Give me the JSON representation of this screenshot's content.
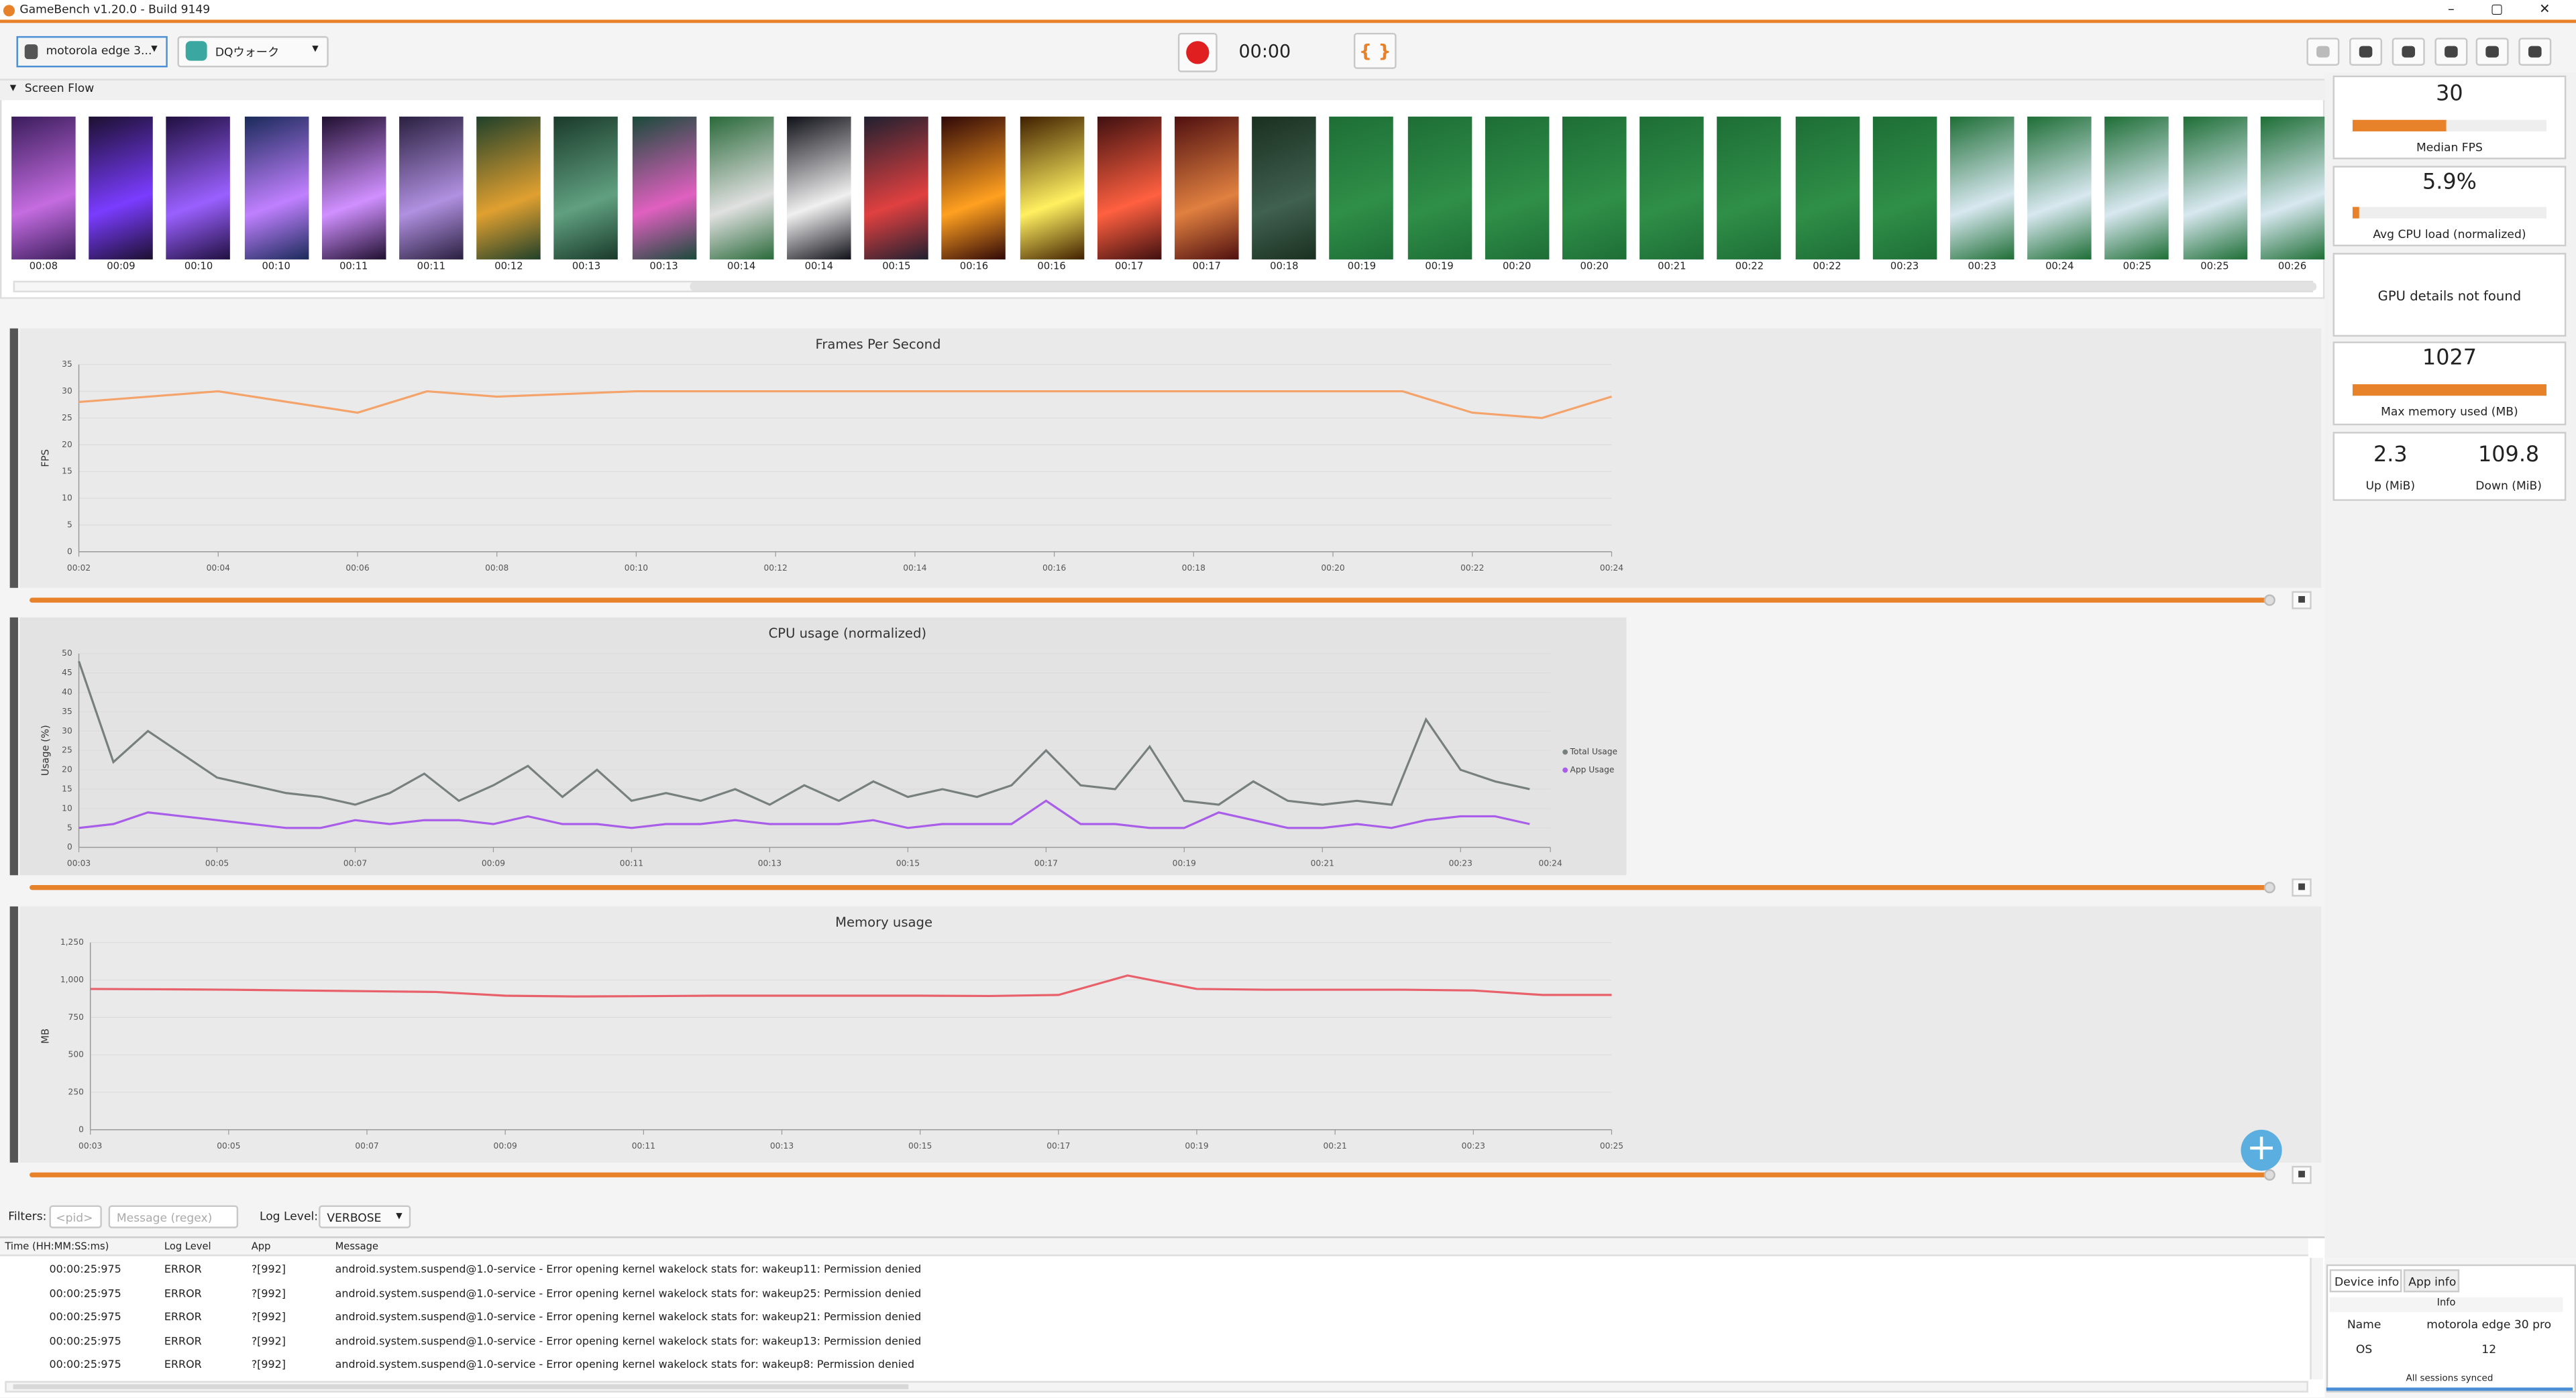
{
  "window_title": "GameBench v1.20.0 - Build 9149",
  "toolbar": {
    "device": "motorola edge 3...",
    "app": "DQウォーク",
    "timer": "00:00",
    "json_button": "{ }"
  },
  "screen_flow": {
    "title": "Screen Flow",
    "timestamps": [
      "00:08",
      "00:09",
      "00:10",
      "00:10",
      "00:11",
      "00:11",
      "00:12",
      "00:13",
      "00:13",
      "00:14",
      "00:14",
      "00:15",
      "00:16",
      "00:16",
      "00:17",
      "00:17",
      "00:18",
      "00:19",
      "00:19",
      "00:20",
      "00:20",
      "00:21",
      "00:22",
      "00:22",
      "00:23",
      "00:23",
      "00:24",
      "00:25",
      "00:25",
      "00:26"
    ]
  },
  "charts": [
    {
      "type": "line",
      "title": "Frames Per Second",
      "y_label": "FPS",
      "x": [
        2,
        3,
        4,
        5,
        6,
        7,
        8,
        9,
        10,
        11,
        12,
        13,
        14,
        15,
        16,
        17,
        18,
        19,
        20,
        21,
        22,
        23,
        24
      ],
      "series": [
        {
          "color": "#f4a36a",
          "values": [
            28,
            29,
            30,
            28,
            26,
            30,
            29,
            29.5,
            30,
            30,
            30,
            30,
            30,
            30,
            30,
            30,
            30,
            30,
            30,
            30,
            26,
            25,
            29
          ]
        }
      ],
      "xlim": [
        2,
        24
      ],
      "ylim": [
        0,
        35
      ],
      "xticks": [
        {
          "value": 2,
          "label": "00:02"
        },
        {
          "value": 4,
          "label": "00:04"
        },
        {
          "value": 6,
          "label": "00:06"
        },
        {
          "value": 8,
          "label": "00:08"
        },
        {
          "value": 10,
          "label": "00:10"
        },
        {
          "value": 12,
          "label": "00:12"
        },
        {
          "value": 14,
          "label": "00:14"
        },
        {
          "value": 16,
          "label": "00:16"
        },
        {
          "value": 18,
          "label": "00:18"
        },
        {
          "value": 20,
          "label": "00:20"
        },
        {
          "value": 22,
          "label": "00:22"
        },
        {
          "value": 24,
          "label": "00:24"
        }
      ],
      "yticks": [
        0,
        5,
        10,
        15,
        20,
        25,
        30,
        35
      ],
      "grid": true
    },
    {
      "type": "line",
      "title": "CPU usage (normalized)",
      "y_label": "Usage (%)",
      "x": [
        3,
        3.5,
        4,
        4.5,
        5,
        5.5,
        6,
        6.5,
        7,
        7.5,
        8,
        8.5,
        9,
        9.5,
        10,
        10.5,
        11,
        11.5,
        12,
        12.5,
        13,
        13.5,
        14,
        14.5,
        15,
        15.5,
        16,
        16.5,
        17,
        17.5,
        18,
        18.5,
        19,
        19.5,
        20,
        20.5,
        21,
        21.5,
        22,
        22.5,
        23,
        23.5,
        24
      ],
      "series": [
        {
          "name": "Total Usage",
          "color": "#77807e",
          "values": [
            48,
            22,
            30,
            24,
            18,
            16,
            14,
            13,
            11,
            14,
            19,
            12,
            16,
            21,
            13,
            20,
            12,
            14,
            12,
            15,
            11,
            16,
            12,
            17,
            13,
            15,
            13,
            16,
            25,
            16,
            15,
            26,
            12,
            11,
            17,
            12,
            11,
            12,
            11,
            33,
            20,
            17,
            15
          ]
        },
        {
          "name": "App Usage",
          "color": "#a85ee8",
          "values": [
            5,
            6,
            9,
            8,
            7,
            6,
            5,
            5,
            7,
            6,
            7,
            7,
            6,
            8,
            6,
            6,
            5,
            6,
            6,
            7,
            6,
            6,
            6,
            7,
            5,
            6,
            6,
            6,
            12,
            6,
            6,
            5,
            5,
            9,
            7,
            5,
            5,
            6,
            5,
            7,
            8,
            8,
            6
          ]
        }
      ],
      "xlim": [
        3,
        24.3
      ],
      "ylim": [
        0,
        50
      ],
      "xticks": [
        {
          "value": 3,
          "label": "00:03"
        },
        {
          "value": 5,
          "label": "00:05"
        },
        {
          "value": 7,
          "label": "00:07"
        },
        {
          "value": 9,
          "label": "00:09"
        },
        {
          "value": 11,
          "label": "00:11"
        },
        {
          "value": 13,
          "label": "00:13"
        },
        {
          "value": 15,
          "label": "00:15"
        },
        {
          "value": 17,
          "label": "00:17"
        },
        {
          "value": 19,
          "label": "00:19"
        },
        {
          "value": 21,
          "label": "00:21"
        },
        {
          "value": 23,
          "label": "00:23"
        },
        {
          "value": 24.3,
          "label": "00:24"
        }
      ],
      "yticks": [
        0,
        5,
        10,
        15,
        20,
        25,
        30,
        35,
        40,
        45,
        50
      ],
      "grid": true
    },
    {
      "type": "line",
      "title": "Memory usage",
      "y_label": "MB",
      "x": [
        3,
        4,
        5,
        6,
        7,
        8,
        9,
        10,
        11,
        12,
        13,
        14,
        15,
        16,
        17,
        18,
        19,
        20,
        21,
        22,
        23,
        24,
        25
      ],
      "series": [
        {
          "color": "#e8606a",
          "values": [
            940,
            938,
            935,
            930,
            925,
            920,
            895,
            890,
            892,
            895,
            895,
            895,
            895,
            893,
            900,
            1030,
            940,
            935,
            935,
            935,
            930,
            900,
            900
          ]
        }
      ],
      "xlim": [
        3,
        25
      ],
      "ylim": [
        0,
        1250
      ],
      "xticks": [
        {
          "value": 3,
          "label": "00:03"
        },
        {
          "value": 5,
          "label": "00:05"
        },
        {
          "value": 7,
          "label": "00:07"
        },
        {
          "value": 9,
          "label": "00:09"
        },
        {
          "value": 11,
          "label": "00:11"
        },
        {
          "value": 13,
          "label": "00:13"
        },
        {
          "value": 15,
          "label": "00:15"
        },
        {
          "value": 17,
          "label": "00:17"
        },
        {
          "value": 19,
          "label": "00:19"
        },
        {
          "value": 21,
          "label": "00:21"
        },
        {
          "value": 23,
          "label": "00:23"
        },
        {
          "value": 25,
          "label": "00:25"
        }
      ],
      "yticks": [
        0,
        250,
        500,
        750,
        {
          "value": 1000,
          "label": "1,000"
        },
        {
          "value": 1250,
          "label": "1,250"
        }
      ],
      "grid": true
    }
  ],
  "stats": {
    "median_fps": {
      "value": 30,
      "label": "Median FPS"
    },
    "cpu": {
      "value": "5.9%",
      "label": "Avg CPU load (normalized)"
    },
    "gpu": "GPU details not found",
    "memory": {
      "value": 1027,
      "label": "Max memory used (MB)"
    },
    "up": {
      "value": 2.3,
      "label": "Up (MiB)"
    },
    "down": {
      "value": 109.8,
      "label": "Down (MiB)"
    }
  },
  "filters": {
    "label": "Filters:",
    "pid_placeholder": "<pid>",
    "message_placeholder": "Message (regex)",
    "log_level_label": "Log Level:",
    "log_level": "VERBOSE"
  },
  "log_table": {
    "columns": [
      "Time (HH:MM:SS:ms)",
      "Log Level",
      "App",
      "Message"
    ],
    "rows": [
      [
        "00:00:25:975",
        "ERROR",
        "?[992]",
        "android.system.suspend@1.0-service - Error opening kernel wakelock stats for: wakeup11: Permission denied"
      ],
      [
        "00:00:25:975",
        "ERROR",
        "?[992]",
        "android.system.suspend@1.0-service - Error opening kernel wakelock stats for: wakeup25: Permission denied"
      ],
      [
        "00:00:25:975",
        "ERROR",
        "?[992]",
        "android.system.suspend@1.0-service - Error opening kernel wakelock stats for: wakeup21: Permission denied"
      ],
      [
        "00:00:25:975",
        "ERROR",
        "?[992]",
        "android.system.suspend@1.0-service - Error opening kernel wakelock stats for: wakeup13: Permission denied"
      ],
      [
        "00:00:25:975",
        "ERROR",
        "?[992]",
        "android.system.suspend@1.0-service - Error opening kernel wakelock stats for: wakeup8: Permission denied"
      ]
    ]
  },
  "device_panel": {
    "tabs": [
      "Device info",
      "App info"
    ],
    "header": "Info",
    "rows": [
      [
        "Name",
        "motorola edge 30 pro"
      ],
      [
        "OS",
        "12"
      ]
    ]
  },
  "status": "All sessions synced"
}
